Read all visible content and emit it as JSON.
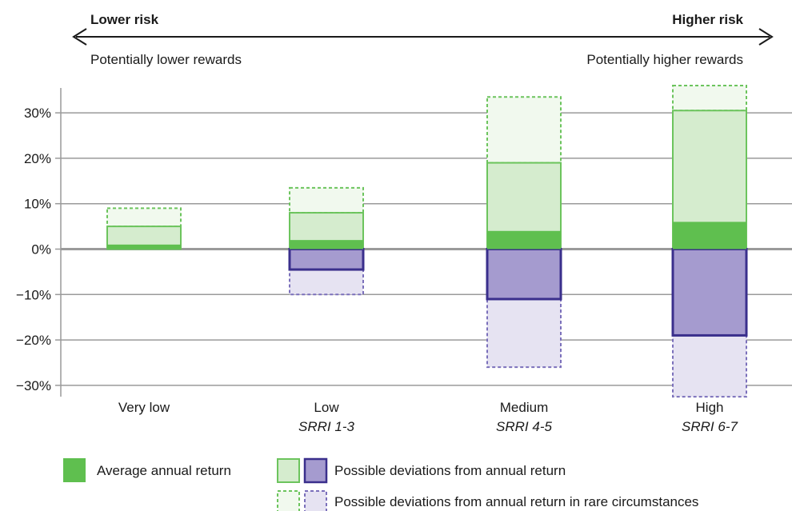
{
  "header": {
    "left_risk": "Lower risk",
    "right_risk": "Higher risk",
    "left_reward": "Potentially lower rewards",
    "right_reward": "Potentially higher rewards"
  },
  "legend": {
    "average": "Average annual return",
    "deviation": "Possible deviations from annual return",
    "rare": "Possible deviations from annual return in rare circumstances"
  },
  "colors": {
    "avg_green": "#5fbf4f",
    "pos_fill": "#d5ecce",
    "pos_stroke": "#6cc45d",
    "rare_pos_fill": "#f1f9ee",
    "neg_fill": "#a59bcf",
    "neg_stroke": "#3a2f8c",
    "rare_neg_fill": "#e6e3f2",
    "rare_neg_stroke": "#7b70bb",
    "grid": "#9a9a9a",
    "text": "#1a1a1a"
  },
  "chart_data": {
    "type": "bar",
    "categories": [
      "Very low",
      "Low",
      "Medium",
      "High"
    ],
    "subcategories": [
      "",
      "SRRI 1-3",
      "SRRI 4-5",
      "SRRI 6-7"
    ],
    "yticks": [
      "30%",
      "20%",
      "10%",
      "0%",
      "−10%",
      "−20%",
      "−30%"
    ],
    "ylim": [
      -32.5,
      36
    ],
    "yunit": "%",
    "series": [
      {
        "name": "Average annual return",
        "values": [
          1.0,
          2.0,
          4.0,
          6.0
        ]
      },
      {
        "name": "Possible deviations from annual return",
        "upper": [
          5.0,
          8.0,
          19.0,
          30.5
        ],
        "lower": [
          null,
          -4.5,
          -11.0,
          -19.0
        ]
      },
      {
        "name": "Possible deviations from annual return in rare circumstances",
        "upper": [
          9.0,
          13.5,
          33.5,
          36
        ],
        "lower": [
          null,
          -10.0,
          -26.0,
          -32.5
        ]
      }
    ]
  }
}
